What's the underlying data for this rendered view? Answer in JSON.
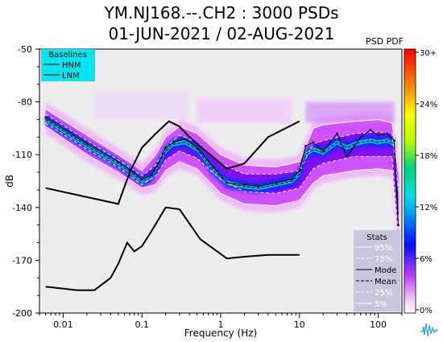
{
  "title_line1": "YM.NJ168.--.CH2 : 3000 PSDs",
  "title_line2": "01-JUN-2021 / 02-AUG-2021",
  "colorbar_label": "PSD PDF",
  "colorbar_ticks": [
    "30+",
    "24%",
    "18%",
    "12%",
    "6%",
    "0%"
  ],
  "legend_baselines": {
    "title": "Baselines",
    "items": [
      "HNM",
      "LNM"
    ]
  },
  "legend_stats": {
    "title": "Stats",
    "items": [
      "95%",
      "75%",
      "Mode",
      "Mean",
      "25%",
      "5%"
    ]
  },
  "colors": {
    "plot_bg": "#ececec",
    "baseline_box": "#00e5ee",
    "stats_box": "#c8c6dc"
  },
  "chart_data": {
    "type": "heatmap",
    "xlabel": "Frequency (Hz)",
    "ylabel": "dB",
    "x_scale": "log",
    "xlim": [
      0.005,
      200
    ],
    "ylim": [
      -200,
      -50
    ],
    "x_ticks": [
      0.01,
      0.1,
      1,
      10,
      100
    ],
    "x_tick_labels": [
      "0.01",
      "0.1",
      "1",
      "10",
      "100"
    ],
    "y_ticks": [
      -200,
      -170,
      -140,
      -110,
      -80,
      -50
    ],
    "y_tick_labels": [
      "-200",
      "-170",
      "-140",
      "-110",
      "-80",
      "-50"
    ],
    "grid": false,
    "series": [
      {
        "name": "HNM",
        "x": [
          0.006,
          0.05,
          0.07,
          0.1,
          0.15,
          0.22,
          0.3,
          0.4,
          1.2,
          2,
          4,
          10
        ],
        "y": [
          -129,
          -138,
          -120,
          -106,
          -98,
          -91,
          -94,
          -100,
          -118,
          -115,
          -100,
          -91
        ]
      },
      {
        "name": "LNM",
        "x": [
          0.006,
          0.015,
          0.025,
          0.04,
          0.05,
          0.065,
          0.08,
          0.1,
          0.13,
          0.2,
          0.3,
          0.55,
          1.2,
          2,
          4,
          10
        ],
        "y": [
          -185,
          -187,
          -187,
          -180,
          -172,
          -160,
          -165,
          -162,
          -154,
          -140,
          -141,
          -158,
          -169,
          -168,
          -167,
          -167
        ]
      },
      {
        "name": "Mode",
        "x": [
          0.006,
          0.02,
          0.05,
          0.1,
          0.13,
          0.16,
          0.2,
          0.25,
          0.35,
          0.5,
          0.8,
          1.2,
          2,
          3,
          5,
          8,
          10,
          12,
          15,
          20,
          30,
          40,
          50,
          60,
          80,
          100,
          130,
          160,
          180
        ],
        "y": [
          -89,
          -104,
          -114,
          -124,
          -122,
          -115,
          -106,
          -103,
          -101,
          -106,
          -117,
          -126,
          -127,
          -128,
          -126,
          -124,
          -119,
          -105,
          -103,
          -108,
          -98,
          -111,
          -105,
          -100,
          -96,
          -99,
          -98,
          -102,
          -150
        ]
      },
      {
        "name": "Mean",
        "x": [
          0.006,
          0.02,
          0.05,
          0.1,
          0.13,
          0.16,
          0.2,
          0.25,
          0.35,
          0.5,
          0.8,
          1.2,
          2,
          3,
          5,
          8,
          10,
          12,
          15,
          20,
          30,
          40,
          50,
          60,
          80,
          100,
          130,
          160,
          180
        ],
        "y": [
          -90,
          -105,
          -115,
          -125,
          -123,
          -116,
          -108,
          -104,
          -103,
          -107,
          -119,
          -126,
          -128,
          -129,
          -127,
          -125,
          -121,
          -110,
          -107,
          -109,
          -103,
          -106,
          -104,
          -103,
          -102,
          -103,
          -102,
          -104,
          -145
        ]
      },
      {
        "name": "95%",
        "x": [
          0.006,
          0.02,
          0.05,
          0.1,
          0.15,
          0.2,
          0.3,
          0.5,
          1,
          2,
          5,
          10,
          15,
          20,
          50,
          100,
          150,
          180
        ],
        "y": [
          -84,
          -99,
          -110,
          -119,
          -110,
          -100,
          -94,
          -98,
          -110,
          -116,
          -117,
          -114,
          -95,
          -93,
          -91,
          -90,
          -92,
          -120
        ]
      },
      {
        "name": "75%",
        "x": [
          0.006,
          0.02,
          0.05,
          0.1,
          0.15,
          0.2,
          0.3,
          0.5,
          1,
          2,
          5,
          10,
          15,
          20,
          50,
          100,
          150,
          180
        ],
        "y": [
          -87,
          -102,
          -113,
          -122,
          -116,
          -106,
          -99,
          -103,
          -115,
          -121,
          -121,
          -119,
          -104,
          -102,
          -98,
          -97,
          -98,
          -130
        ]
      },
      {
        "name": "25%",
        "x": [
          0.006,
          0.02,
          0.05,
          0.1,
          0.15,
          0.2,
          0.3,
          0.5,
          1,
          2,
          5,
          10,
          15,
          20,
          50,
          100,
          150,
          180
        ],
        "y": [
          -92,
          -107,
          -117,
          -127,
          -122,
          -113,
          -108,
          -112,
          -124,
          -131,
          -132,
          -129,
          -118,
          -115,
          -111,
          -111,
          -111,
          -155
        ]
      },
      {
        "name": "5%",
        "x": [
          0.006,
          0.02,
          0.05,
          0.1,
          0.15,
          0.2,
          0.3,
          0.5,
          1,
          2,
          5,
          10,
          15,
          20,
          50,
          100,
          150,
          180
        ],
        "y": [
          -94,
          -110,
          -120,
          -129,
          -127,
          -119,
          -114,
          -118,
          -132,
          -138,
          -139,
          -136,
          -126,
          -122,
          -119,
          -118,
          -119,
          -165
        ]
      }
    ]
  }
}
